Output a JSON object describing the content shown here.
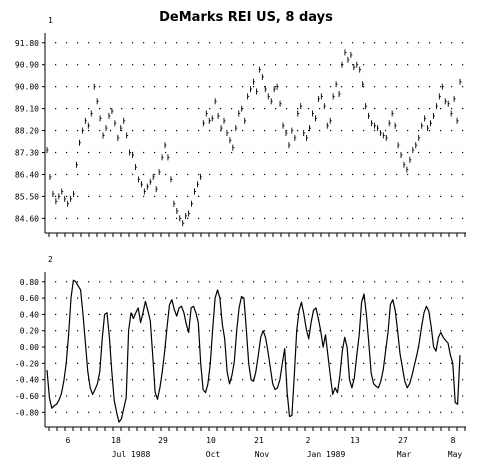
{
  "chart_data": {
    "title": "DeMarks REI US, 8 days",
    "type": "line",
    "x_date_labels": [
      "6",
      "18",
      "29",
      "10",
      "21",
      "2",
      "13",
      "27",
      "8"
    ],
    "x_month_labels": [
      "Jul 1988",
      "Oct",
      "Nov",
      "Jan 1989",
      "Mar",
      "May"
    ],
    "panels": [
      {
        "id": "1",
        "type": "bar",
        "ylim": [
          84.0,
          92.2
        ],
        "yticks": [
          "84.60",
          "85.50",
          "86.40",
          "87.30",
          "88.20",
          "89.10",
          "90.00",
          "90.90",
          "91.80"
        ],
        "values": [
          87.4,
          86.3,
          85.6,
          85.3,
          85.5,
          85.7,
          85.4,
          85.2,
          85.4,
          85.6,
          86.8,
          87.7,
          88.2,
          88.6,
          88.4,
          88.9,
          90.0,
          89.4,
          88.7,
          88.0,
          88.3,
          88.8,
          89.0,
          88.5,
          87.9,
          88.3,
          88.6,
          88.0,
          87.3,
          87.2,
          86.7,
          86.2,
          86.0,
          85.7,
          85.9,
          86.1,
          86.3,
          85.8,
          86.5,
          87.1,
          87.6,
          87.1,
          86.2,
          85.2,
          84.9,
          84.6,
          84.4,
          84.7,
          84.8,
          85.2,
          85.7,
          86.0,
          86.3,
          88.5,
          88.9,
          88.6,
          88.7,
          89.4,
          88.8,
          88.3,
          88.6,
          88.1,
          87.8,
          87.5,
          88.3,
          88.9,
          89.1,
          88.6,
          89.6,
          89.9,
          90.2,
          89.8,
          90.7,
          90.4,
          89.9,
          89.6,
          89.4,
          89.9,
          90.0,
          89.3,
          88.4,
          88.1,
          87.6,
          88.2,
          87.9,
          88.9,
          89.2,
          88.1,
          87.9,
          88.3,
          88.9,
          88.7,
          89.5,
          89.6,
          89.2,
          88.4,
          88.6,
          89.6,
          90.1,
          89.7,
          90.9,
          91.4,
          91.1,
          91.3,
          90.8,
          90.9,
          90.7,
          90.1,
          89.2,
          88.8,
          88.5,
          88.4,
          88.3,
          88.1,
          88.0,
          87.9,
          88.5,
          88.9,
          88.4,
          87.6,
          87.2,
          86.8,
          86.6,
          87.0,
          87.4,
          87.6,
          87.9,
          88.4,
          88.7,
          88.3,
          88.5,
          88.8,
          89.2,
          89.6,
          90.0,
          89.4,
          89.3,
          88.9,
          89.5,
          88.6,
          90.2
        ]
      },
      {
        "id": "2",
        "type": "line",
        "ylim": [
          -0.98,
          0.92
        ],
        "yticks": [
          "-0.80",
          "-0.60",
          "-0.40",
          "-0.20",
          "0.00",
          "0.20",
          "0.40",
          "0.60",
          "0.80"
        ],
        "values": [
          -0.28,
          -0.62,
          -0.75,
          -0.72,
          -0.7,
          -0.65,
          -0.57,
          -0.42,
          -0.2,
          0.15,
          0.6,
          0.82,
          0.8,
          0.75,
          0.7,
          0.4,
          0.05,
          -0.3,
          -0.5,
          -0.58,
          -0.52,
          -0.45,
          -0.3,
          0.1,
          0.4,
          0.42,
          0.12,
          -0.3,
          -0.65,
          -0.8,
          -0.92,
          -0.88,
          -0.75,
          -0.62,
          0.2,
          0.42,
          0.35,
          0.42,
          0.48,
          0.3,
          0.42,
          0.56,
          0.45,
          0.32,
          -0.1,
          -0.55,
          -0.64,
          -0.5,
          -0.3,
          -0.05,
          0.25,
          0.52,
          0.58,
          0.46,
          0.38,
          0.48,
          0.5,
          0.42,
          0.28,
          0.18,
          0.48,
          0.5,
          0.42,
          0.3,
          -0.2,
          -0.52,
          -0.56,
          -0.45,
          -0.2,
          0.22,
          0.6,
          0.7,
          0.6,
          0.28,
          0.1,
          -0.3,
          -0.45,
          -0.35,
          -0.18,
          0.2,
          0.48,
          0.62,
          0.6,
          0.22,
          -0.2,
          -0.4,
          -0.42,
          -0.3,
          -0.1,
          0.12,
          0.2,
          0.12,
          -0.05,
          -0.25,
          -0.45,
          -0.52,
          -0.5,
          -0.4,
          -0.2,
          -0.02,
          -0.55,
          -0.85,
          -0.84,
          -0.35,
          0.2,
          0.45,
          0.55,
          0.4,
          0.22,
          0.1,
          0.3,
          0.45,
          0.48,
          0.35,
          0.2,
          0.0,
          0.15,
          -0.1,
          -0.35,
          -0.58,
          -0.5,
          -0.56,
          -0.35,
          -0.05,
          0.12,
          0.0,
          -0.4,
          -0.5,
          -0.38,
          -0.1,
          0.15,
          0.55,
          0.65,
          0.4,
          0.05,
          -0.32,
          -0.45,
          -0.48,
          -0.5,
          -0.42,
          -0.28,
          -0.05,
          0.18,
          0.52,
          0.58,
          0.45,
          0.2,
          -0.08,
          -0.25,
          -0.42,
          -0.5,
          -0.45,
          -0.35,
          -0.22,
          -0.1,
          0.05,
          0.25,
          0.42,
          0.5,
          0.44,
          0.25,
          0.0,
          -0.05,
          0.12,
          0.18,
          0.12,
          0.08,
          0.05,
          -0.1,
          -0.2,
          -0.68,
          -0.7,
          -0.1
        ]
      }
    ]
  }
}
